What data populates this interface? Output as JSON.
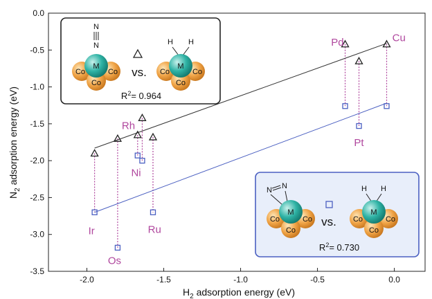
{
  "chart_data": {
    "type": "scatter",
    "xlabel_main": "H",
    "xlabel_sub": "2",
    "xlabel_rest": " adsorption energy (eV)",
    "ylabel_main": "N",
    "ylabel_sub": "2",
    "ylabel_rest": " adsorption energy (eV)",
    "xlim": [
      -2.25,
      0.2
    ],
    "ylim": [
      -3.5,
      0.0
    ],
    "xticks": [
      -2.0,
      -1.5,
      -1.0,
      -0.5,
      0.0
    ],
    "xtick_labels": [
      "-2.0",
      "-1.5",
      "-1.0",
      "-0.5",
      "0.0"
    ],
    "yticks": [
      0.0,
      -0.5,
      -1.0,
      -1.5,
      -2.0,
      -2.5,
      -3.0,
      -3.5
    ],
    "ytick_labels": [
      "0.0",
      "-0.5",
      "-1.0",
      "-1.5",
      "-2.0",
      "-2.5",
      "-3.0",
      "-3.5"
    ],
    "series": [
      {
        "marker": "triangle",
        "color": "#222222",
        "points": [
          {
            "x": -1.95,
            "y": -1.9
          },
          {
            "x": -1.8,
            "y": -1.7
          },
          {
            "x": -1.67,
            "y": -1.65
          },
          {
            "x": -1.64,
            "y": -1.42
          },
          {
            "x": -1.57,
            "y": -1.68
          },
          {
            "x": -0.32,
            "y": -0.42
          },
          {
            "x": -0.23,
            "y": -0.65
          },
          {
            "x": -0.05,
            "y": -0.42
          }
        ],
        "fit_line": {
          "x": [
            -1.95,
            -0.05
          ],
          "y": [
            -1.83,
            -0.41
          ]
        },
        "fit_color": "#333333"
      },
      {
        "marker": "square",
        "color": "#4a5fc1",
        "points": [
          {
            "x": -1.95,
            "y": -2.7
          },
          {
            "x": -1.8,
            "y": -3.18
          },
          {
            "x": -1.67,
            "y": -1.93
          },
          {
            "x": -1.64,
            "y": -2.0
          },
          {
            "x": -1.57,
            "y": -2.7
          },
          {
            "x": -0.32,
            "y": -1.26
          },
          {
            "x": -0.23,
            "y": -1.53
          },
          {
            "x": -0.05,
            "y": -1.26
          }
        ],
        "fit_line": {
          "x": [
            -1.95,
            -0.05
          ],
          "y": [
            -2.7,
            -1.22
          ]
        },
        "fit_color": "#4a5fc1"
      }
    ],
    "connectors": [
      {
        "x": -1.95,
        "y1": -1.9,
        "y2": -2.7
      },
      {
        "x": -1.8,
        "y1": -1.7,
        "y2": -3.18
      },
      {
        "x": -1.67,
        "y1": -1.65,
        "y2": -1.93
      },
      {
        "x": -1.64,
        "y1": -1.42,
        "y2": -2.0
      },
      {
        "x": -1.57,
        "y1": -1.68,
        "y2": -2.7
      },
      {
        "x": -0.32,
        "y1": -0.42,
        "y2": -1.26
      },
      {
        "x": -0.23,
        "y1": -0.65,
        "y2": -1.53
      },
      {
        "x": -0.05,
        "y1": -0.42,
        "y2": -1.26
      }
    ],
    "connector_color": "#b0479e",
    "labels": [
      {
        "text": "Ir",
        "x": -1.97,
        "y": -3.0
      },
      {
        "text": "Os",
        "x": -1.82,
        "y": -3.4
      },
      {
        "text": "Rh",
        "x": -1.73,
        "y": -1.57
      },
      {
        "text": "Ni",
        "x": -1.68,
        "y": -2.21
      },
      {
        "text": "Ru",
        "x": -1.56,
        "y": -2.98
      },
      {
        "text": "Pd",
        "x": -0.37,
        "y": -0.44
      },
      {
        "text": "Pt",
        "x": -0.23,
        "y": -1.8
      },
      {
        "text": "Cu",
        "x": 0.03,
        "y": -0.38
      }
    ],
    "insets": [
      {
        "ligand": "N≡N end-on",
        "marker": "triangle",
        "vs": "vs.",
        "r2_main": "R",
        "r2_sup": "2",
        "r2_rest": "= 0.964",
        "border": "#222222",
        "fill": "#ffffff"
      },
      {
        "ligand": "N=N side-on",
        "marker": "square",
        "vs": "vs.",
        "r2_main": "R",
        "r2_sup": "2",
        "r2_rest": "= 0.730",
        "border": "#4a5fc1",
        "fill": "#e8eefa"
      }
    ],
    "atoms": {
      "metal": "M",
      "support": "Co",
      "n": "N",
      "h": "H"
    },
    "atom_colors": {
      "metal": "#2aa79a",
      "support": "#e8963a"
    },
    "grid": false,
    "legend": "inset boxes"
  }
}
